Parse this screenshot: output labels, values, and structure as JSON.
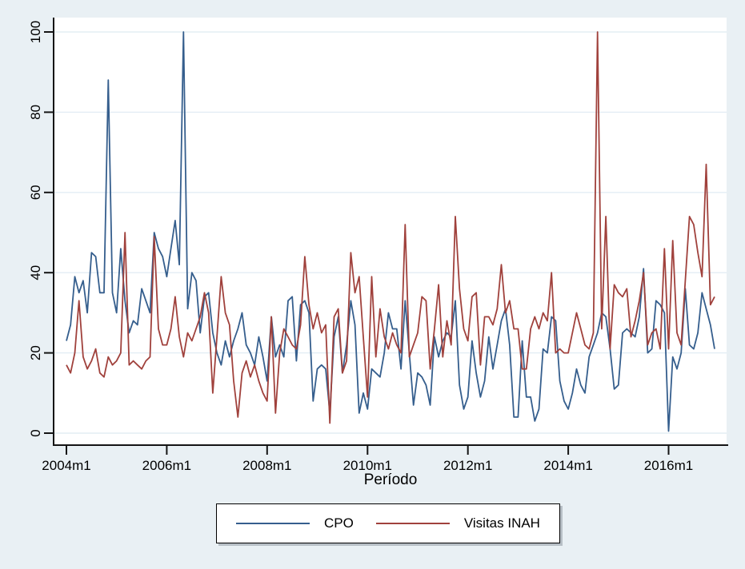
{
  "figure": {
    "background": "#e9f0f4",
    "plot_background": "#ffffff",
    "grid_color": "#e3edf4",
    "axis_color": "#141414"
  },
  "chart_data": {
    "type": "line",
    "title": "",
    "xlabel": "Período",
    "ylabel": "",
    "ylim": [
      0,
      100
    ],
    "grid": true,
    "legend_position": "bottom",
    "x_start": "2004m1",
    "x_end": "2016m12",
    "x_frequency": "monthly",
    "y_ticks": [
      0,
      20,
      40,
      60,
      80,
      100
    ],
    "x_tick_labels": [
      "2004m1",
      "2006m1",
      "2008m1",
      "2010m1",
      "2012m1",
      "2014m1",
      "2016m1"
    ],
    "x_tick_month_indices": [
      0,
      24,
      48,
      72,
      96,
      120,
      144
    ],
    "series": [
      {
        "name": "CPO",
        "color": "#355e8d",
        "values": [
          23,
          27,
          39,
          35,
          38,
          30,
          45,
          44,
          35,
          35,
          88,
          35,
          30,
          46,
          33,
          25,
          28,
          27,
          36,
          33,
          30,
          50,
          46,
          44,
          39,
          46,
          53,
          42,
          100,
          31,
          40,
          38,
          25,
          34,
          35,
          25,
          20,
          17,
          23,
          19,
          23,
          26,
          30,
          22,
          20,
          17,
          24,
          19,
          13,
          29,
          19,
          22,
          19,
          33,
          34,
          18,
          32,
          33,
          30,
          8,
          16,
          17,
          16,
          5,
          24,
          29,
          15,
          22,
          33,
          27,
          5,
          10,
          6,
          16,
          15,
          14,
          20,
          30,
          26,
          26,
          16,
          33,
          20,
          7,
          15,
          14,
          12,
          7,
          24,
          19,
          23,
          25,
          24,
          33,
          12,
          6,
          9,
          23,
          15,
          9,
          13,
          24,
          16,
          22,
          28,
          31,
          22,
          4,
          4,
          23,
          9,
          9,
          3,
          6,
          21,
          20,
          29,
          28,
          13,
          8,
          6,
          10,
          16,
          12,
          10,
          19,
          22,
          25,
          30,
          29,
          21,
          11,
          12,
          25,
          26,
          25,
          24,
          29,
          41,
          20,
          21,
          33,
          32,
          30,
          0.5,
          19,
          16,
          20,
          36,
          22,
          21,
          25,
          35,
          31,
          27,
          21
        ]
      },
      {
        "name": "Visitas INAH",
        "color": "#a0413c",
        "values": [
          17,
          15,
          20,
          33,
          19,
          16,
          18,
          21,
          15,
          14,
          19,
          17,
          18,
          20,
          50,
          17,
          18,
          17,
          16,
          18,
          19,
          49,
          26,
          22,
          22,
          26,
          34,
          24,
          19,
          25,
          23,
          26,
          29,
          35,
          30,
          10,
          24,
          39,
          30,
          27,
          13,
          4,
          15,
          18,
          14,
          17,
          13,
          10,
          8,
          29,
          5,
          20,
          26,
          24,
          22,
          21,
          27,
          44,
          32,
          26,
          30,
          25,
          27,
          2.5,
          29,
          31,
          15,
          18,
          45,
          35,
          39,
          24,
          9,
          39,
          19,
          31,
          24,
          21,
          25,
          22,
          20,
          52,
          19,
          22,
          25,
          34,
          33,
          16,
          26,
          37,
          19,
          28,
          22,
          54,
          36,
          26,
          23,
          34,
          35,
          17,
          29,
          29,
          27,
          31,
          42,
          30,
          33,
          26,
          26,
          16,
          16,
          26,
          29,
          26,
          30,
          28,
          40,
          20,
          21,
          20,
          20,
          25,
          30,
          26,
          22,
          21,
          25,
          100,
          26,
          54,
          21,
          37,
          35,
          34,
          36,
          24,
          28,
          33,
          40,
          22,
          25,
          26,
          21,
          46,
          21,
          48,
          25,
          22,
          38,
          54,
          52,
          45,
          39,
          67,
          32,
          34
        ]
      }
    ]
  },
  "legend": {
    "items": [
      {
        "label": "CPO"
      },
      {
        "label": "Visitas INAH"
      }
    ]
  }
}
